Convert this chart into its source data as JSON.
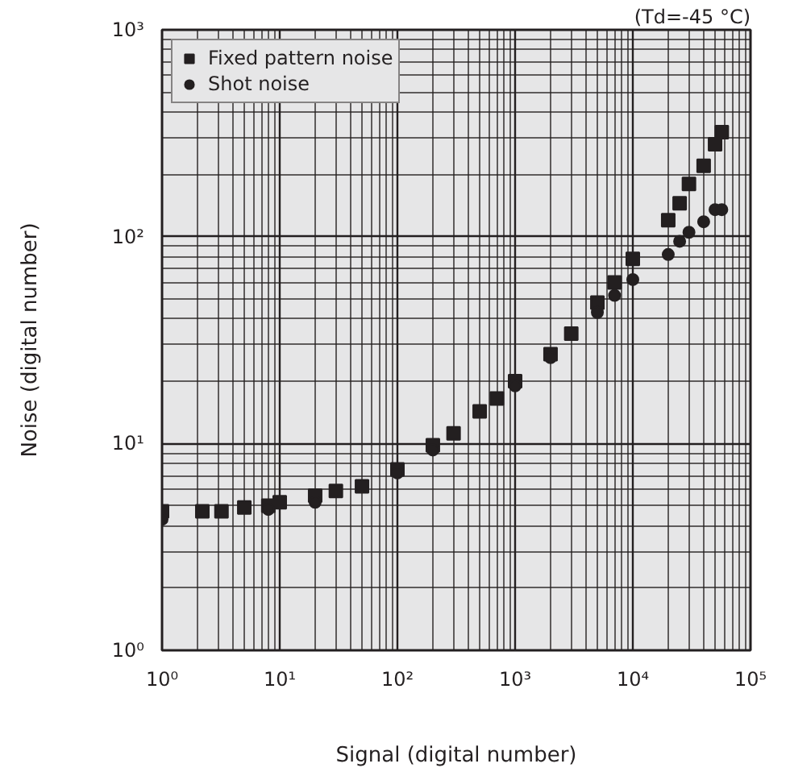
{
  "chart_data": {
    "type": "scatter",
    "xlabel": "Signal (digital number)",
    "ylabel": "Noise (digital number)",
    "annotations": [
      "(Td=-45 °C)"
    ],
    "log": "xy",
    "grid": true,
    "legend": "top left",
    "xlim": [
      1,
      100000
    ],
    "ylim": [
      1,
      1000
    ],
    "xticks": [
      {
        "value": 1,
        "label": "10⁰"
      },
      {
        "value": 10,
        "label": "10¹"
      },
      {
        "value": 100,
        "label": "10²"
      },
      {
        "value": 1000,
        "label": "10³"
      },
      {
        "value": 10000,
        "label": "10⁴"
      },
      {
        "value": 100000,
        "label": "10⁵"
      }
    ],
    "yticks": [
      {
        "value": 1,
        "label": "10⁰"
      },
      {
        "value": 10,
        "label": "10¹"
      },
      {
        "value": 100,
        "label": "10²"
      },
      {
        "value": 1000,
        "label": "10³"
      }
    ],
    "series": [
      {
        "name": "Fixed pattern noise",
        "color": "#231f20",
        "marker": "square",
        "x": [
          1,
          2.2,
          3.2,
          5,
          8,
          10,
          20,
          30,
          50,
          100,
          200,
          300,
          500,
          700,
          1000,
          2000,
          3000,
          5000,
          7000,
          10000,
          20000,
          25000,
          30000,
          40000,
          50000,
          57000
        ],
        "values": [
          4.7,
          4.7,
          4.7,
          4.9,
          5.0,
          5.2,
          5.6,
          5.9,
          6.2,
          7.5,
          9.8,
          11.2,
          14.3,
          16.5,
          20,
          27,
          34,
          48,
          60,
          78,
          120,
          145,
          180,
          220,
          280,
          320
        ]
      },
      {
        "name": "Shot noise",
        "color": "#231f20",
        "marker": "circle",
        "x": [
          1,
          8,
          20,
          100,
          200,
          1000,
          2000,
          5000,
          7000,
          10000,
          20000,
          25000,
          30000,
          40000,
          50000,
          57000
        ],
        "values": [
          4.3,
          4.8,
          5.2,
          7.2,
          9.3,
          19,
          26,
          43,
          52,
          62,
          82,
          95,
          105,
          118,
          135,
          135
        ]
      }
    ]
  }
}
